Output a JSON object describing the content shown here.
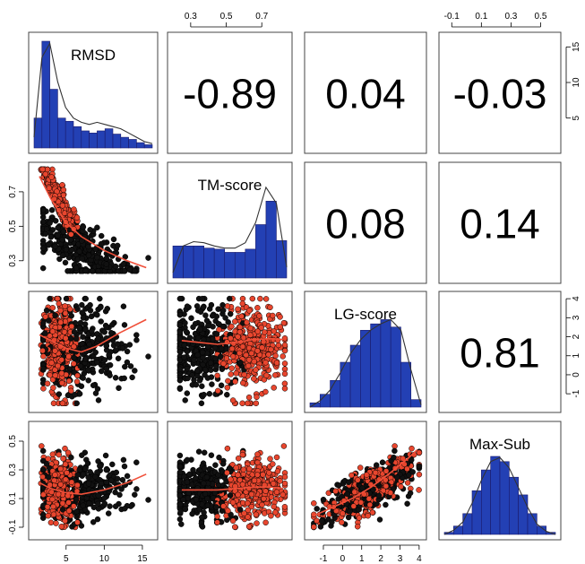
{
  "chart_data": {
    "type": "scatter-matrix",
    "variables": [
      "RMSD",
      "TM-score",
      "LG-score",
      "Max-Sub"
    ],
    "colors": {
      "hist_fill": "#2340b4",
      "hist_stroke": "#1a1a6a",
      "density": "#333333",
      "point_black": "#111111",
      "point_red": "#e8462e",
      "smooth": "#f0503a",
      "frame": "#444444"
    },
    "correlations": [
      {
        "row": 0,
        "col": 1,
        "label": "-0.89"
      },
      {
        "row": 0,
        "col": 2,
        "label": "0.04"
      },
      {
        "row": 0,
        "col": 3,
        "label": "-0.03"
      },
      {
        "row": 1,
        "col": 2,
        "label": "0.08"
      },
      {
        "row": 1,
        "col": 3,
        "label": "0.14"
      },
      {
        "row": 2,
        "col": 3,
        "label": "0.81"
      }
    ],
    "axes": {
      "RMSD": {
        "range": [
          0.8,
          16.3
        ],
        "ticks": [
          5,
          10,
          15
        ],
        "tick_labels": [
          "5",
          "10",
          "15"
        ]
      },
      "TM-score": {
        "range": [
          0.2,
          0.84
        ],
        "ticks": [
          0.3,
          0.5,
          0.7
        ],
        "tick_labels": [
          "0.3",
          "0.5",
          "0.7"
        ]
      },
      "LG-score": {
        "range": [
          -1.7,
          4.1
        ],
        "ticks": [
          -1,
          0,
          1,
          2,
          3,
          4
        ],
        "tick_labels": [
          "-1",
          "0",
          "1",
          "2",
          "3",
          "4"
        ]
      },
      "Max-Sub": {
        "range": [
          -0.15,
          0.6
        ],
        "ticks": [
          -0.1,
          0.1,
          0.3,
          0.5
        ],
        "tick_labels": [
          "-0.1",
          "0.1",
          "0.3",
          "0.5"
        ]
      },
      "RMSD_right": {
        "ticks": [
          5,
          10,
          15
        ],
        "tick_labels": [
          "5",
          "10",
          "15"
        ]
      },
      "MaxSub_top": {
        "ticks": [
          -0.1,
          0.1,
          0.3,
          0.5
        ],
        "tick_labels": [
          "-0.1",
          "0.1",
          "0.3",
          "0.5"
        ]
      }
    },
    "histograms": {
      "RMSD": {
        "bin_edges": [
          1,
          2,
          3,
          4,
          5,
          6,
          7,
          8,
          9,
          10,
          11,
          12,
          13,
          14,
          15,
          16
        ],
        "heights": [
          0.28,
          1.0,
          0.55,
          0.28,
          0.25,
          0.2,
          0.16,
          0.14,
          0.16,
          0.18,
          0.13,
          0.1,
          0.08,
          0.05,
          0.03
        ],
        "density": [
          0.1,
          0.85,
          0.98,
          0.62,
          0.38,
          0.28,
          0.24,
          0.22,
          0.24,
          0.22,
          0.2,
          0.18,
          0.14,
          0.1,
          0.06,
          0.04
        ]
      },
      "TM-score": {
        "bin_edges": [
          0.25,
          0.3,
          0.35,
          0.4,
          0.45,
          0.5,
          0.55,
          0.6,
          0.65,
          0.7,
          0.75,
          0.8
        ],
        "heights": [
          0.3,
          0.3,
          0.3,
          0.28,
          0.27,
          0.24,
          0.24,
          0.27,
          0.5,
          0.72,
          0.35
        ],
        "density": [
          0.05,
          0.3,
          0.34,
          0.33,
          0.3,
          0.28,
          0.28,
          0.33,
          0.52,
          0.85,
          0.7,
          0.1
        ]
      },
      "LG-score": {
        "bin_edges": [
          -1.5,
          -1,
          -0.5,
          0,
          0.5,
          1,
          1.5,
          2,
          2.5,
          3,
          3.5,
          4
        ],
        "heights": [
          0.04,
          0.12,
          0.25,
          0.42,
          0.58,
          0.72,
          0.78,
          0.82,
          0.75,
          0.42,
          0.07
        ],
        "density": [
          0.0,
          0.06,
          0.16,
          0.32,
          0.5,
          0.63,
          0.72,
          0.78,
          0.82,
          0.72,
          0.35,
          0.02
        ]
      },
      "Max-Sub": {
        "bin_edges": [
          -0.1,
          -0.05,
          0,
          0.05,
          0.1,
          0.15,
          0.2,
          0.25,
          0.3,
          0.35,
          0.4,
          0.45,
          0.5
        ],
        "heights": [
          0.02,
          0.08,
          0.2,
          0.42,
          0.62,
          0.75,
          0.7,
          0.55,
          0.38,
          0.2,
          0.08,
          0.02
        ],
        "density": [
          0.0,
          0.04,
          0.12,
          0.3,
          0.52,
          0.7,
          0.74,
          0.64,
          0.45,
          0.26,
          0.1,
          0.03,
          0.0
        ]
      }
    },
    "smooth_curves": {
      "1,0": [
        [
          1.5,
          0.79
        ],
        [
          3,
          0.66
        ],
        [
          5,
          0.52
        ],
        [
          7,
          0.44
        ],
        [
          10,
          0.36
        ],
        [
          13,
          0.3
        ],
        [
          15.5,
          0.26
        ]
      ],
      "2,0": [
        [
          1.5,
          2.1
        ],
        [
          3,
          1.8
        ],
        [
          5,
          1.4
        ],
        [
          7,
          1.2
        ],
        [
          9,
          1.5
        ],
        [
          12,
          2.2
        ],
        [
          15.5,
          2.9
        ]
      ],
      "2,1": [
        [
          0.25,
          1.8
        ],
        [
          0.35,
          1.7
        ],
        [
          0.45,
          1.6
        ],
        [
          0.55,
          1.7
        ],
        [
          0.65,
          1.85
        ],
        [
          0.75,
          1.9
        ],
        [
          0.82,
          1.85
        ]
      ],
      "3,0": [
        [
          1.5,
          0.21
        ],
        [
          3,
          0.17
        ],
        [
          5,
          0.14
        ],
        [
          7,
          0.13
        ],
        [
          10,
          0.16
        ],
        [
          13,
          0.21
        ],
        [
          15.5,
          0.27
        ]
      ],
      "3,1": [
        [
          0.25,
          0.16
        ],
        [
          0.35,
          0.16
        ],
        [
          0.45,
          0.16
        ],
        [
          0.55,
          0.17
        ],
        [
          0.65,
          0.18
        ],
        [
          0.75,
          0.18
        ],
        [
          0.82,
          0.17
        ]
      ],
      "3,2": [
        [
          -1.5,
          -0.02
        ],
        [
          -0.5,
          0.04
        ],
        [
          0.5,
          0.1
        ],
        [
          1.5,
          0.18
        ],
        [
          2.5,
          0.28
        ],
        [
          3.5,
          0.39
        ],
        [
          3.9,
          0.44
        ]
      ]
    }
  }
}
